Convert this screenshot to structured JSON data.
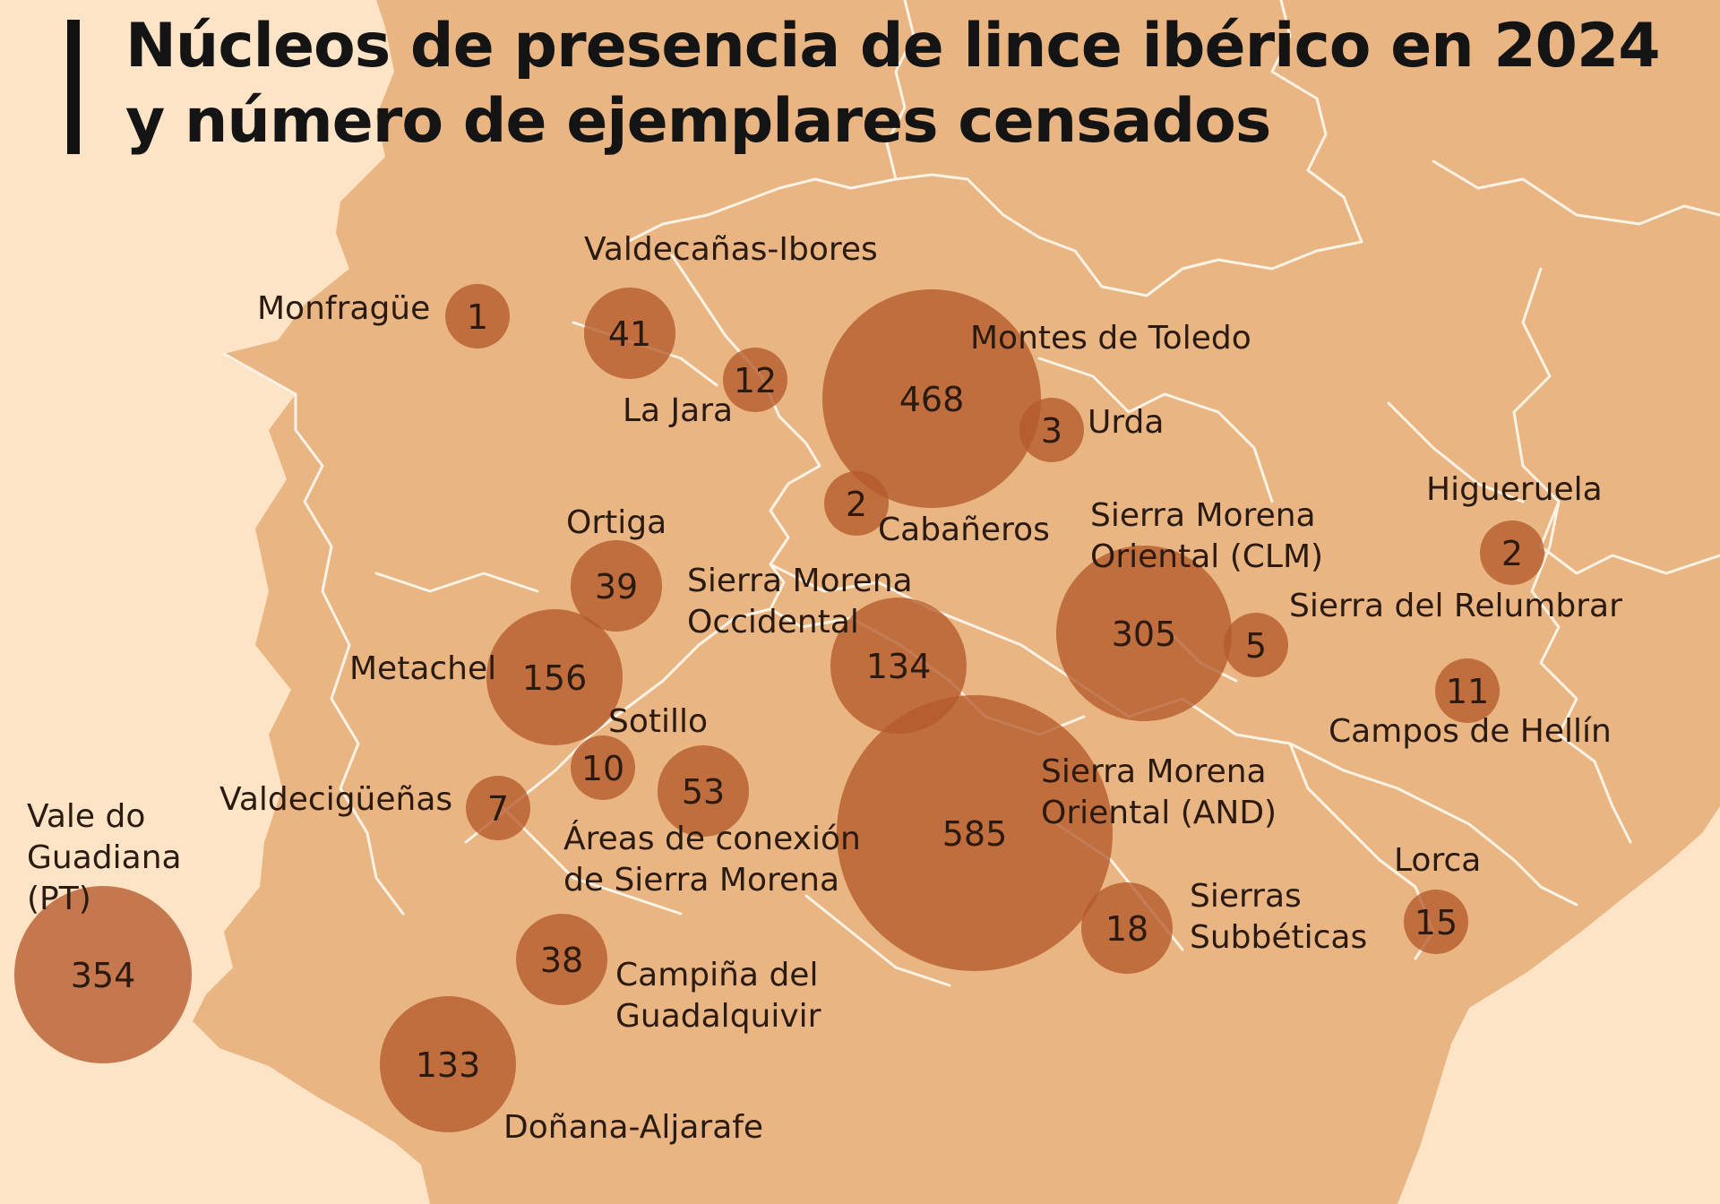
{
  "title": {
    "line1": "Núcleos de presencia de lince ibérico en 2024",
    "line2": "y número de ejemplares censados"
  },
  "colors": {
    "background": "#fde4c6",
    "land": "#e9b582",
    "borders": "#fff3e6",
    "bubble": "#b55a2a",
    "text": "#2a1a10"
  },
  "nuclei": [
    {
      "id": "monfrague",
      "value": 1,
      "label": [
        "Monfragüe"
      ]
    },
    {
      "id": "valdecanas-ibores",
      "value": 41,
      "label": [
        "Valdecañas-Ibores"
      ]
    },
    {
      "id": "la-jara",
      "value": 12,
      "label": [
        "La Jara"
      ]
    },
    {
      "id": "montes-de-toledo",
      "value": 468,
      "label": [
        "Montes de Toledo"
      ]
    },
    {
      "id": "urda",
      "value": 3,
      "label": [
        "Urda"
      ]
    },
    {
      "id": "cabaneros",
      "value": 2,
      "label": [
        "Cabañeros"
      ]
    },
    {
      "id": "higueruela",
      "value": 2,
      "label": [
        "Higueruela"
      ]
    },
    {
      "id": "ortiga",
      "value": 39,
      "label": [
        "Ortiga"
      ]
    },
    {
      "id": "sierra-morena-oriental-clm",
      "value": 305,
      "label": [
        "Sierra Morena",
        "Oriental (CLM)"
      ]
    },
    {
      "id": "sierra-morena-occidental",
      "value": 134,
      "label": [
        "Sierra Morena",
        "Occidental"
      ]
    },
    {
      "id": "sierra-del-relumbrar",
      "value": 5,
      "label": [
        "Sierra del Relumbrar"
      ]
    },
    {
      "id": "metachel",
      "value": 156,
      "label": [
        "Metachel"
      ]
    },
    {
      "id": "campos-de-hellin",
      "value": 11,
      "label": [
        "Campos de Hellín"
      ]
    },
    {
      "id": "sotillo",
      "value": 10,
      "label": [
        "Sotillo"
      ]
    },
    {
      "id": "areas-de-conexion",
      "value": 53,
      "label": [
        "Áreas de conexión",
        "de Sierra Morena"
      ]
    },
    {
      "id": "valdeciguenas",
      "value": 7,
      "label": [
        "Valdecigüeñas"
      ]
    },
    {
      "id": "sierra-morena-oriental-and",
      "value": 585,
      "label": [
        "Sierra Morena",
        "Oriental (AND)"
      ]
    },
    {
      "id": "vale-do-guadiana",
      "value": 354,
      "label": [
        "Vale do",
        "Guadiana",
        "(PT)"
      ]
    },
    {
      "id": "lorca",
      "value": 15,
      "label": [
        "Lorca"
      ]
    },
    {
      "id": "sierras-subbeticas",
      "value": 18,
      "label": [
        "Sierras",
        "Subbéticas"
      ]
    },
    {
      "id": "campina-del-guadalquivir",
      "value": 38,
      "label": [
        "Campiña del",
        "Guadalquivir"
      ]
    },
    {
      "id": "donana-aljarafe",
      "value": 133,
      "label": [
        "Doñana-Aljarafe"
      ]
    }
  ]
}
